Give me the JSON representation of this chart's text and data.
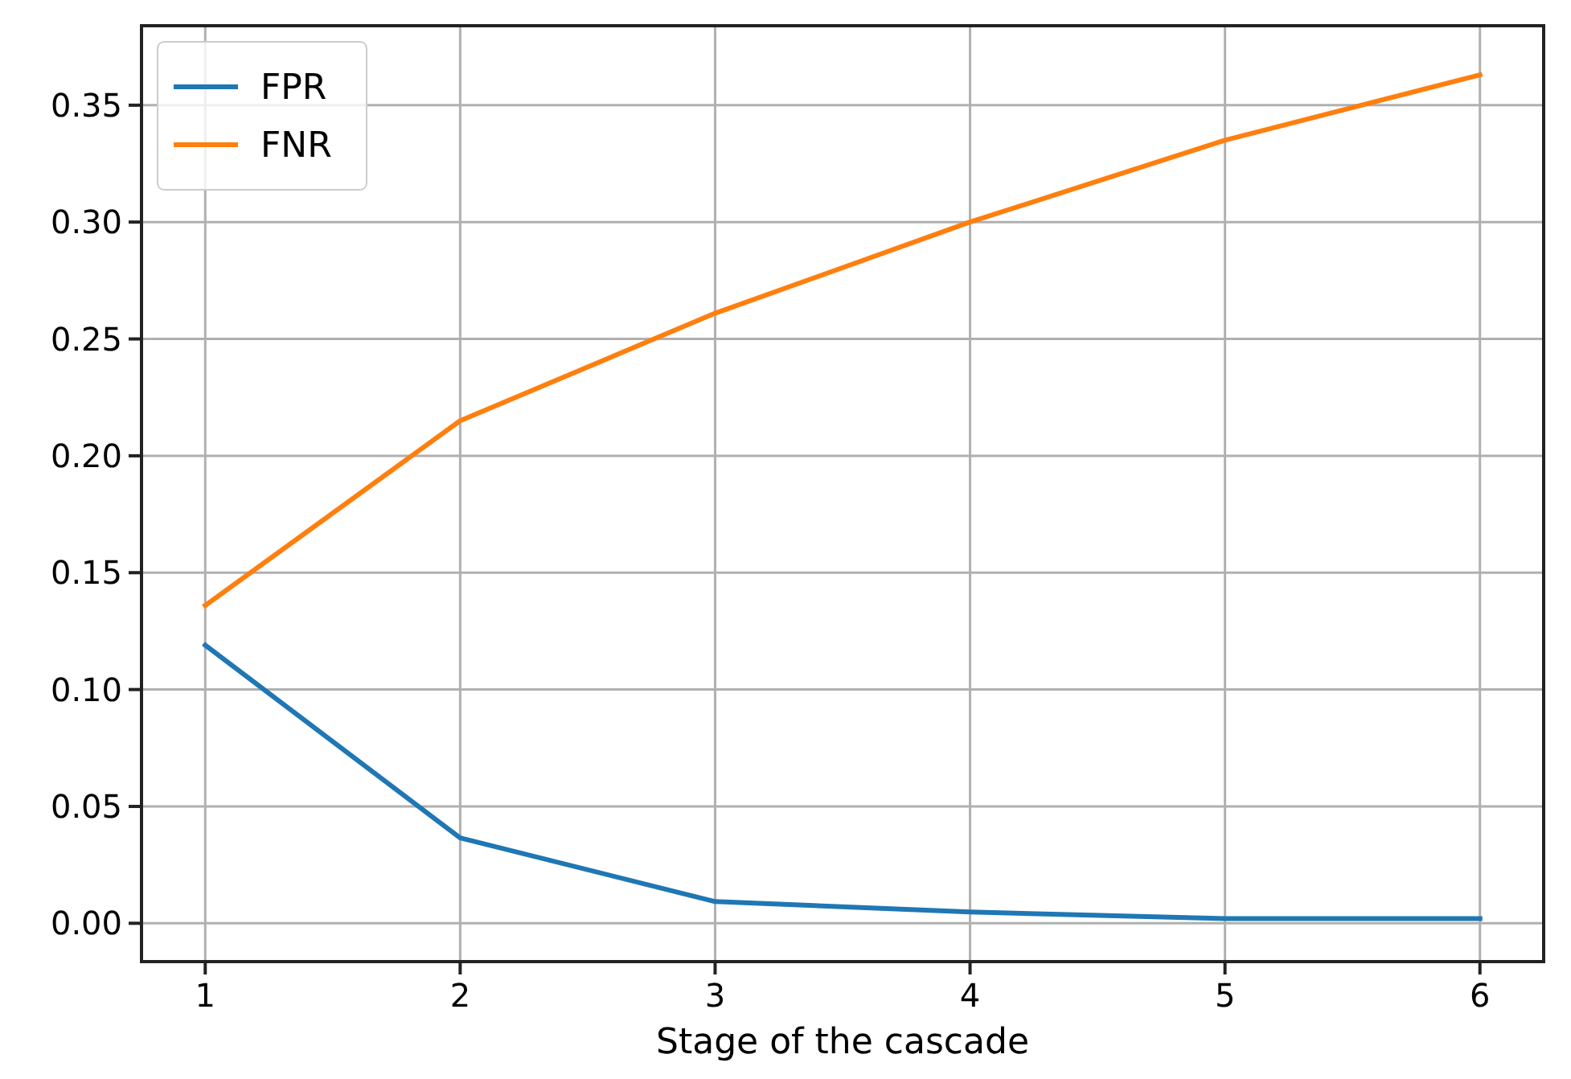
{
  "chart_data": {
    "type": "line",
    "xlabel": "Stage of the cascade",
    "x": [
      1,
      2,
      3,
      4,
      5,
      6
    ],
    "series": [
      {
        "name": "FPR",
        "color": "#1f77b4",
        "values": [
          0.119,
          0.0365,
          0.0093,
          0.0048,
          0.002,
          0.002
        ]
      },
      {
        "name": "FNR",
        "color": "#ff7f0e",
        "values": [
          0.136,
          0.215,
          0.261,
          0.3,
          0.335,
          0.363
        ]
      }
    ],
    "xlim": [
      0.75,
      6.25
    ],
    "xticks": [
      1,
      2,
      3,
      4,
      5,
      6
    ],
    "ylim": [
      -0.0164,
      0.384
    ],
    "yticks": [
      {
        "value": 0,
        "label": "0.00"
      },
      0.05,
      {
        "value": 0.1,
        "label": "0.10"
      },
      0.15,
      {
        "value": 0.2,
        "label": "0.20"
      },
      0.25,
      {
        "value": 0.3,
        "label": "0.30"
      },
      0.35
    ],
    "grid": true,
    "legend": "top left",
    "marker": "none",
    "line_style": "solid"
  }
}
